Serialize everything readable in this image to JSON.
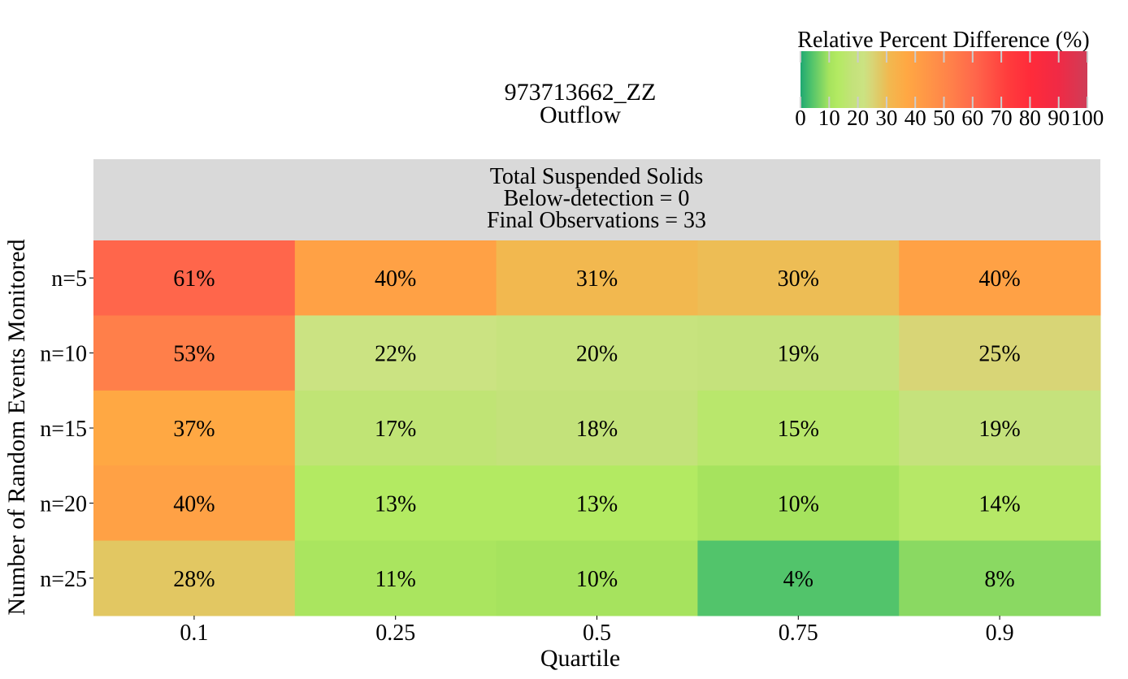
{
  "chart_data": {
    "type": "heatmap",
    "title_lines": [
      "973713662_ZZ",
      "Outflow"
    ],
    "panel_header_lines": [
      "Total Suspended Solids",
      "Below-detection = 0",
      "Final Observations = 33"
    ],
    "xlabel": "Quartile",
    "ylabel": "Number of Random Events Monitored",
    "x_categories": [
      "0.1",
      "0.25",
      "0.5",
      "0.75",
      "0.9"
    ],
    "y_categories": [
      "n=5",
      "n=10",
      "n=15",
      "n=20",
      "n=25"
    ],
    "values": [
      [
        61,
        40,
        31,
        30,
        40
      ],
      [
        53,
        22,
        20,
        19,
        25
      ],
      [
        37,
        17,
        18,
        15,
        19
      ],
      [
        40,
        13,
        13,
        10,
        14
      ],
      [
        28,
        11,
        10,
        4,
        8
      ]
    ],
    "value_suffix": "%",
    "colorbar": {
      "label": "Relative Percent Difference (%)",
      "ticks": [
        0,
        10,
        20,
        30,
        40,
        50,
        60,
        70,
        80,
        90,
        100
      ],
      "range": [
        0,
        100
      ],
      "placement": "top-right",
      "stops": [
        {
          "value": 0,
          "color": "#1fa872"
        },
        {
          "value": 4,
          "color": "#52c46b"
        },
        {
          "value": 10,
          "color": "#a6e35e"
        },
        {
          "value": 13,
          "color": "#b3ea62"
        },
        {
          "value": 18,
          "color": "#c3e27a"
        },
        {
          "value": 22,
          "color": "#cbe382"
        },
        {
          "value": 25,
          "color": "#d8d576"
        },
        {
          "value": 28,
          "color": "#e2c762"
        },
        {
          "value": 31,
          "color": "#f2b84f"
        },
        {
          "value": 37,
          "color": "#ffa843"
        },
        {
          "value": 45,
          "color": "#ff9447"
        },
        {
          "value": 53,
          "color": "#ff7f4a"
        },
        {
          "value": 61,
          "color": "#ff664b"
        },
        {
          "value": 72,
          "color": "#ff3d3d"
        },
        {
          "value": 80,
          "color": "#ff2b3a"
        },
        {
          "value": 90,
          "color": "#f02a45"
        },
        {
          "value": 100,
          "color": "#cf3d57"
        }
      ]
    },
    "panel_header_color": "#d9d9d9"
  }
}
